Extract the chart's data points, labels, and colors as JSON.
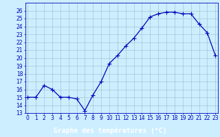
{
  "x": [
    0,
    1,
    2,
    3,
    4,
    5,
    6,
    7,
    8,
    9,
    10,
    11,
    12,
    13,
    14,
    15,
    16,
    17,
    18,
    19,
    20,
    21,
    22,
    23
  ],
  "y": [
    15,
    15,
    16.5,
    16,
    15,
    15,
    14.8,
    13.3,
    15.3,
    17,
    19.3,
    20.3,
    21.5,
    22.5,
    23.8,
    25.2,
    25.6,
    25.8,
    25.8,
    25.6,
    25.6,
    24.3,
    23.2,
    20.3
  ],
  "line_color": "#0000bb",
  "marker": "+",
  "marker_size": 4,
  "marker_lw": 0.8,
  "line_width": 0.9,
  "bg_color": "#cceeff",
  "grid_color": "#99bbcc",
  "xlabel": "Graphe des températures (°C)",
  "xlabel_fontsize": 7,
  "xlabel_bg": "#0000aa",
  "xlabel_fg": "#ffffff",
  "tick_fontsize": 5.5,
  "ylim": [
    13,
    27
  ],
  "yticks": [
    13,
    14,
    15,
    16,
    17,
    18,
    19,
    20,
    21,
    22,
    23,
    24,
    25,
    26
  ],
  "xticks": [
    0,
    1,
    2,
    3,
    4,
    5,
    6,
    7,
    8,
    9,
    10,
    11,
    12,
    13,
    14,
    15,
    16,
    17,
    18,
    19,
    20,
    21,
    22,
    23
  ],
  "xlim": [
    -0.3,
    23.3
  ]
}
